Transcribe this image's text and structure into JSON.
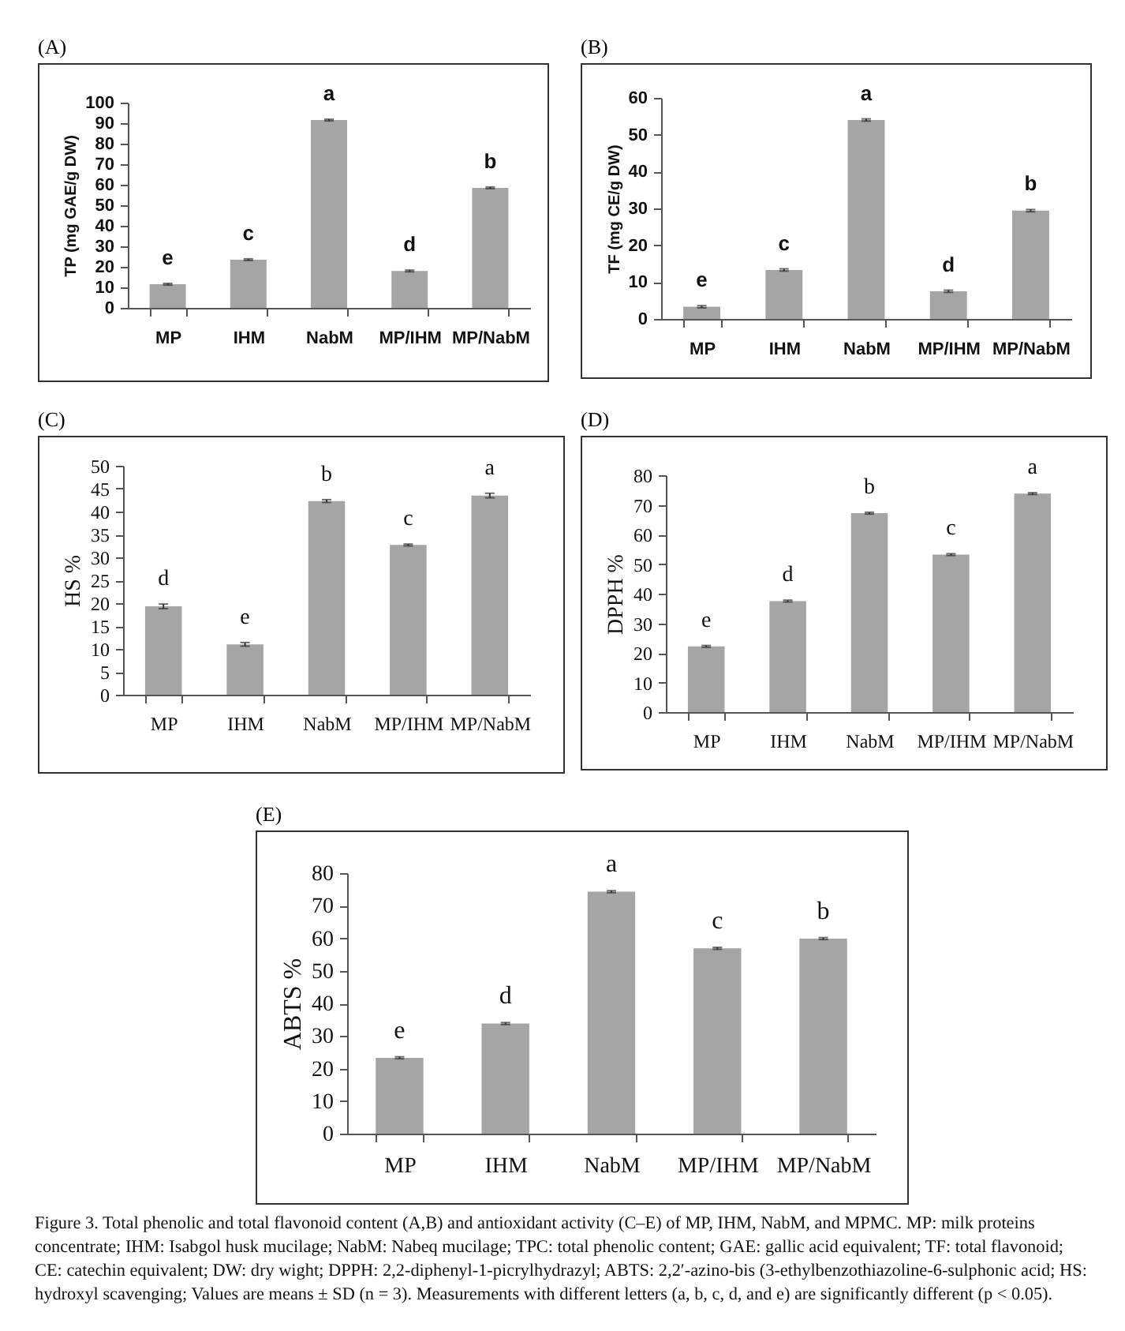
{
  "chart_data": [
    {
      "type": "bar",
      "title": "(A)",
      "ylabel": "TP (mg GAE/g DW)",
      "categories": [
        "MP",
        "IHM",
        "NabM",
        "MP/IHM",
        "MP/NabM"
      ],
      "values": [
        11.5,
        23.5,
        91.5,
        18,
        58.5
      ],
      "errors": [
        0.4,
        0.4,
        0.4,
        0.4,
        0.4
      ],
      "color": "#a5a5a5",
      "ylim": [
        0,
        100
      ],
      "yticks": [
        0,
        10,
        20,
        30,
        40,
        50,
        60,
        70,
        80,
        90,
        100
      ],
      "grid": false,
      "annotations": [
        {
          "text": "e",
          "x": "MP",
          "y": 11.5
        },
        {
          "text": "c",
          "x": "IHM",
          "y": 23.5
        },
        {
          "text": "a",
          "x": "NabM",
          "y": 91.5
        },
        {
          "text": "d",
          "x": "MP/IHM",
          "y": 18
        },
        {
          "text": "b",
          "x": "MP/NabM",
          "y": 58.5
        }
      ]
    },
    {
      "type": "bar",
      "title": "(B)",
      "ylabel": "TF (mg CE/g DW)",
      "categories": [
        "MP",
        "IHM",
        "NabM",
        "MP/IHM",
        "MP/NabM"
      ],
      "values": [
        3.3,
        13.3,
        54,
        7.5,
        29.4
      ],
      "errors": [
        0.3,
        0.3,
        0.3,
        0.3,
        0.3
      ],
      "color": "#a5a5a5",
      "ylim": [
        0,
        60
      ],
      "yticks": [
        0,
        10,
        20,
        30,
        40,
        50,
        60
      ],
      "grid": false,
      "annotations": [
        {
          "text": "e",
          "x": "MP",
          "y": 3.3
        },
        {
          "text": "c",
          "x": "IHM",
          "y": 13.3
        },
        {
          "text": "a",
          "x": "NabM",
          "y": 54
        },
        {
          "text": "d",
          "x": "MP/IHM",
          "y": 7.5
        },
        {
          "text": "b",
          "x": "MP/NabM",
          "y": 29.4
        }
      ]
    },
    {
      "type": "bar",
      "title": "(C)",
      "ylabel": "HS %",
      "categories": [
        "MP",
        "IHM",
        "NabM",
        "MP/IHM",
        "MP/NabM"
      ],
      "values": [
        19.3,
        11,
        42.3,
        32.7,
        43.5
      ],
      "errors": [
        0.5,
        0.4,
        0.3,
        0.2,
        0.5
      ],
      "color": "#a5a5a5",
      "ylim": [
        0,
        50
      ],
      "yticks": [
        0,
        5,
        10,
        15,
        20,
        25,
        30,
        35,
        40,
        45,
        50
      ],
      "grid": false,
      "annotations": [
        {
          "text": "d",
          "x": "MP",
          "y": 19.3
        },
        {
          "text": "e",
          "x": "IHM",
          "y": 11
        },
        {
          "text": "b",
          "x": "NabM",
          "y": 42.3
        },
        {
          "text": "c",
          "x": "MP/IHM",
          "y": 32.7
        },
        {
          "text": "a",
          "x": "MP/NabM",
          "y": 43.5
        }
      ]
    },
    {
      "type": "bar",
      "title": "(D)",
      "ylabel": "DPPH  %",
      "categories": [
        "MP",
        "IHM",
        "NabM",
        "MP/IHM",
        "MP/NabM"
      ],
      "values": [
        22.2,
        37.5,
        67.2,
        53.2,
        73.8
      ],
      "errors": [
        0.3,
        0.3,
        0.3,
        0.3,
        0.3
      ],
      "color": "#a5a5a5",
      "ylim": [
        0,
        80
      ],
      "yticks": [
        0,
        10,
        20,
        30,
        40,
        50,
        60,
        70,
        80
      ],
      "grid": false,
      "annotations": [
        {
          "text": "e",
          "x": "MP",
          "y": 22.2
        },
        {
          "text": "d",
          "x": "IHM",
          "y": 37.5
        },
        {
          "text": "b",
          "x": "NabM",
          "y": 67.2
        },
        {
          "text": "c",
          "x": "MP/IHM",
          "y": 53.2
        },
        {
          "text": "a",
          "x": "MP/NabM",
          "y": 73.8
        }
      ]
    },
    {
      "type": "bar",
      "title": "(E)",
      "ylabel": "ABTS %",
      "categories": [
        "MP",
        "IHM",
        "NabM",
        "MP/IHM",
        "MP/NabM"
      ],
      "values": [
        23.3,
        33.8,
        74.3,
        56.9,
        59.9
      ],
      "errors": [
        0.3,
        0.3,
        0.3,
        0.3,
        0.3
      ],
      "color": "#a5a5a5",
      "ylim": [
        0,
        80
      ],
      "yticks": [
        0,
        10,
        20,
        30,
        40,
        50,
        60,
        70,
        80
      ],
      "grid": false,
      "annotations": [
        {
          "text": "e",
          "x": "MP",
          "y": 23.3
        },
        {
          "text": "d",
          "x": "IHM",
          "y": 33.8
        },
        {
          "text": "a",
          "x": "NabM",
          "y": 74.3
        },
        {
          "text": "c",
          "x": "MP/IHM",
          "y": 56.9
        },
        {
          "text": "b",
          "x": "MP/NabM",
          "y": 59.9
        },
        "Figure 3. Total phenolic and total flavonoid content (A,B) and antioxidant activity (C–E) of MP, IHM, NabM, and MPMC. MP: milk proteins concentrate; IHM: Isabgol husk mucilage; NabM: Nabeq mucilage; TPC: total phenolic content; GAE: gallic acid equivalent; TF: total flavonoid; CE: catechin equivalent; DW: dry wight; DPPH: 2,2-diphenyl-1-picrylhydrazyl; ABTS: 2,2′-azino-bis (3-ethylbenzothiazoline-6-sulphonic acid; HS: hydroxyl scavenging; Values are means ± SD (n = 3). Measurements with different letters (a, b, c, d, and e) are significantly different (p < 0.05)."
      ]
    }
  ]
}
